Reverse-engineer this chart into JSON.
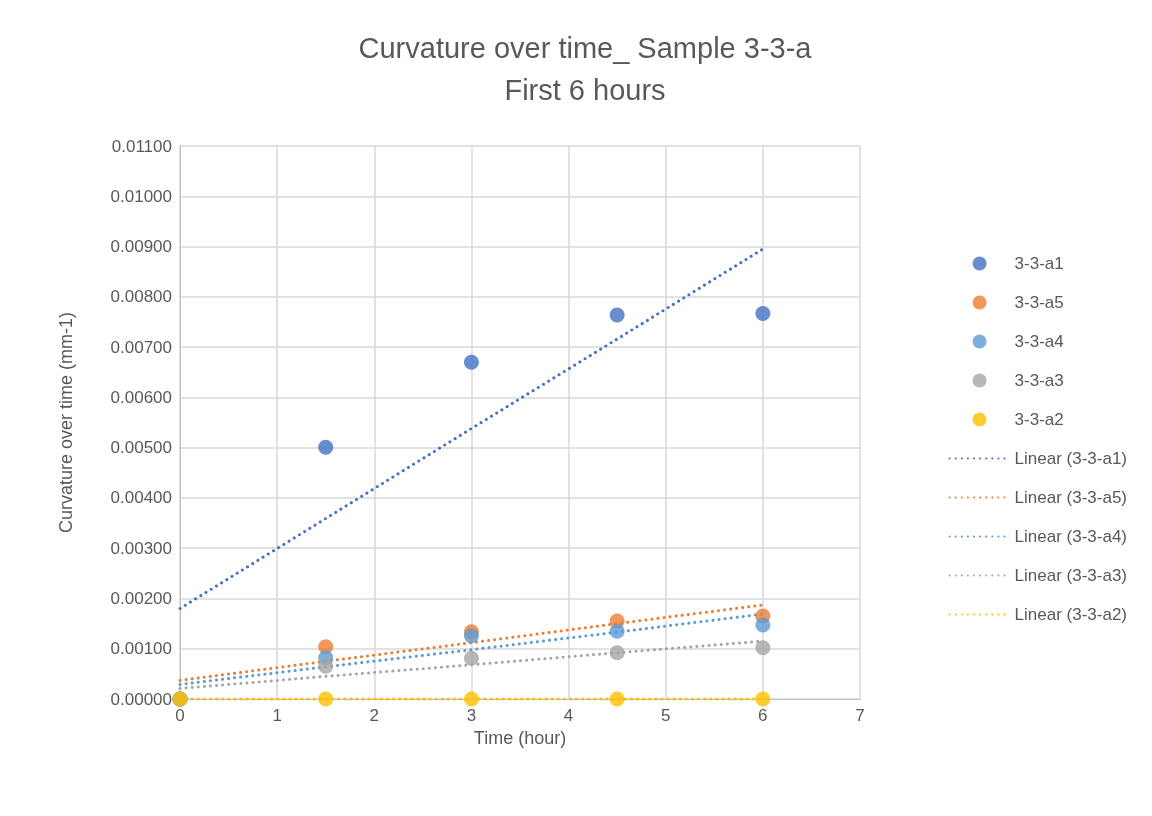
{
  "chart_data": {
    "type": "scatter",
    "title": "Curvature over time_ Sample 3-3-a",
    "subtitle": "First 6 hours",
    "xlabel": "Time (hour)",
    "ylabel": "Curvature over time (mm-1)",
    "x": [
      0,
      1.5,
      3,
      4.5,
      6
    ],
    "series": [
      {
        "name": "3-3-a1",
        "color": "#4472c4",
        "values": [
          0,
          0.00501,
          0.0067,
          0.00764,
          0.00767
        ]
      },
      {
        "name": "3-3-a5",
        "color": "#ed7d31",
        "values": [
          0,
          0.00104,
          0.00134,
          0.00155,
          0.00165
        ]
      },
      {
        "name": "3-3-a4",
        "color": "#5b9bd5",
        "values": [
          0,
          0.00082,
          0.00126,
          0.00135,
          0.00147
        ]
      },
      {
        "name": "3-3-a3",
        "color": "#a5a5a5",
        "values": [
          0,
          0.00065,
          0.00081,
          0.00092,
          0.00102
        ]
      },
      {
        "name": "3-3-a2",
        "color": "#ffc000",
        "values": [
          0,
          0,
          0,
          0,
          0
        ]
      },
      {
        "name": "Linear (3-3-a1)",
        "type": "line",
        "line_style": "dotted",
        "marker": "none",
        "color": "#4472c4",
        "values": [
          0.0018,
          0.00359,
          0.00538,
          0.00716,
          0.00895
        ]
      },
      {
        "name": "Linear (3-3-a5)",
        "type": "line",
        "line_style": "dotted",
        "marker": "none",
        "color": "#ed7d31",
        "values": [
          0.00037,
          0.00075,
          0.00112,
          0.0015,
          0.00187
        ]
      },
      {
        "name": "Linear (3-3-a4)",
        "type": "line",
        "line_style": "dotted",
        "marker": "none",
        "color": "#5b9bd5",
        "values": [
          0.00029,
          0.00064,
          0.00098,
          0.00133,
          0.00169
        ]
      },
      {
        "name": "Linear (3-3-a3)",
        "type": "line",
        "line_style": "dotted",
        "marker": "none",
        "color": "#a5a5a5",
        "values": [
          0.00021,
          0.00045,
          0.00068,
          0.00092,
          0.00115
        ]
      },
      {
        "name": "Linear (3-3-a2)",
        "type": "line",
        "line_style": "dotted",
        "marker": "none",
        "color": "#ffc000",
        "values": [
          0,
          0,
          0,
          0,
          0
        ]
      }
    ],
    "marker": "circle",
    "xlim": [
      0,
      7
    ],
    "xticks": [
      0,
      1,
      2,
      3,
      4,
      5,
      6,
      7
    ],
    "ylim": [
      0,
      0.011
    ],
    "yticks": [
      {
        "value": 0,
        "label": "0.00000"
      },
      {
        "value": 0.001,
        "label": "0.00100"
      },
      {
        "value": 0.002,
        "label": "0.00200"
      },
      {
        "value": 0.003,
        "label": "0.00300"
      },
      {
        "value": 0.004,
        "label": "0.00400"
      },
      {
        "value": 0.005,
        "label": "0.00500"
      },
      {
        "value": 0.006,
        "label": "0.00600"
      },
      {
        "value": 0.007,
        "label": "0.00700"
      },
      {
        "value": 0.008,
        "label": "0.00800"
      },
      {
        "value": 0.009,
        "label": "0.00900"
      },
      {
        "value": 0.01,
        "label": "0.01000"
      },
      {
        "value": 0.011,
        "label": "0.01100"
      }
    ],
    "grid": true,
    "legend": "right"
  }
}
